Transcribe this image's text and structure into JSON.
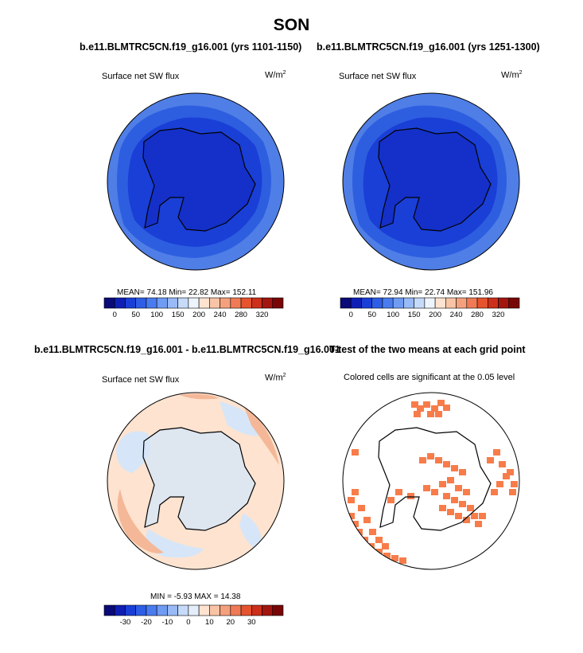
{
  "figure": {
    "season_title": "SON",
    "panels": [
      {
        "case_title": "b.e11.BLMTRC5CN.f19_g16.001 (yrs 1101-1150)",
        "variable": "Surface net SW flux",
        "units": "W/m",
        "units_exp": "2",
        "stats": "MEAN=  74.18  Min=  22.82  Max= 152.11"
      },
      {
        "case_title": "b.e11.BLMTRC5CN.f19_g16.001 (yrs 1251-1300)",
        "variable": "Surface net SW flux",
        "units": "W/m",
        "units_exp": "2",
        "stats": "MEAN=  72.94  Min=  22.74  Max= 151.96"
      },
      {
        "case_title": "b.e11.BLMTRC5CN.f19_g16.001 - b.e11.BLMTRC5CN.f19_g16.001",
        "variable": "Surface net SW flux",
        "units": "W/m",
        "units_exp": "2",
        "stats": "MIN =  -5.93 MAX =  14.38"
      },
      {
        "case_title": "T-test of the two means at each grid point",
        "subtitle": "Colored cells are significant at the 0.05 level"
      }
    ],
    "colorbars": {
      "absolute": {
        "colors": [
          "#0a0a78",
          "#0f1fb4",
          "#1a3fd6",
          "#2e5ee6",
          "#4a7cf0",
          "#6f9bf3",
          "#98baf6",
          "#c6daf9",
          "#eef4fc",
          "#fde3d0",
          "#f9c4a6",
          "#f5a07d",
          "#f07a55",
          "#e5532f",
          "#cc2f1a",
          "#a3150f",
          "#780606"
        ],
        "ticks": [
          "0",
          "50",
          "100",
          "150",
          "200",
          "240",
          "280",
          "320"
        ]
      },
      "difference": {
        "colors": [
          "#0a0a78",
          "#0f1fb4",
          "#1a3fd6",
          "#2e5ee6",
          "#4a7cf0",
          "#6f9bf3",
          "#98baf6",
          "#c6daf9",
          "#e4eefb",
          "#fde3d0",
          "#f9c4a6",
          "#f5a07d",
          "#f07a55",
          "#e5532f",
          "#cc2f1a",
          "#a3150f",
          "#780606"
        ],
        "ticks": [
          "-30",
          "-20",
          "-10",
          "0",
          "10",
          "20",
          "30"
        ]
      }
    },
    "map_colors": {
      "ocean_outer": "#4f7ee6",
      "ocean_mid": "#2e5ee0",
      "ocean_inner": "#1a3fd6",
      "ice_core": "#1430c8",
      "diff_base": "#fde3d0",
      "diff_blue": "#d6e6f8",
      "diff_red": "#f4b898",
      "ttest": "#f77c4a"
    }
  }
}
